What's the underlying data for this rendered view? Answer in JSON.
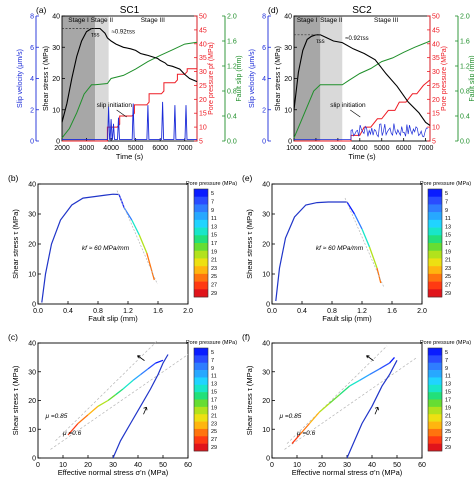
{
  "panels": {
    "a": {
      "letter": "(a)",
      "title": "SC1"
    },
    "d": {
      "letter": "(d)",
      "title": "SC2"
    },
    "b": {
      "letter": "(b)"
    },
    "c": {
      "letter": "(c)"
    },
    "e": {
      "letter": "(e)"
    },
    "f": {
      "letter": "(f)"
    }
  },
  "colorbar": {
    "title": "Pore pressure (MPa)",
    "labels": [
      "5",
      "7",
      "9",
      "11",
      "13",
      "15",
      "17",
      "19",
      "21",
      "23",
      "25",
      "27",
      "29"
    ],
    "colors": [
      "#0a1cff",
      "#2a4cff",
      "#2f7dff",
      "#27a8ff",
      "#20d4ff",
      "#18e6c8",
      "#22e07a",
      "#66dd33",
      "#b2e21c",
      "#ede012",
      "#ffb50f",
      "#ff740e",
      "#ff3a12",
      "#e0141b"
    ]
  },
  "colors": {
    "shear": "#000000",
    "slip_velocity": "#1b2bd8",
    "pore": "#ee1c25",
    "fault_slip": "#1f8f2a",
    "stage1": "#a7a7a7",
    "stage2": "#d9d9d9",
    "blue_line": "#2035c9",
    "dash": "#b5b5b5"
  },
  "chart_data": [
    {
      "type": "line",
      "panel": "a",
      "title": "SC1",
      "xlabel": "Time (s)",
      "xlim": [
        2000,
        7500
      ],
      "xticks": [
        "2000",
        "3000",
        "4000",
        "5000",
        "6000",
        "7000"
      ],
      "y_axes": [
        {
          "label": "Slip velocity (μm/s)",
          "lim": [
            0,
            8
          ],
          "ticks": [
            "0",
            "2",
            "4",
            "6",
            "8"
          ],
          "side": "left-outer"
        },
        {
          "label": "Shear stress τ (MPa)",
          "lim": [
            0,
            40
          ],
          "ticks": [
            "0",
            "10",
            "20",
            "30",
            "40"
          ],
          "side": "left-inner"
        },
        {
          "label": "Pore pressure pf (MPa)",
          "lim": [
            5,
            50
          ],
          "ticks": [
            "5",
            "10",
            "15",
            "20",
            "25",
            "30",
            "35",
            "40",
            "45",
            "50"
          ],
          "side": "right-inner"
        },
        {
          "label": "Fault slip (mm)",
          "lim": [
            0,
            2.0
          ],
          "ticks": [
            "0.0",
            "0.4",
            "0.8",
            "1.2",
            "1.6",
            "2.0"
          ],
          "side": "right-outer"
        }
      ],
      "stages": [
        {
          "label": "Stage I",
          "range": [
            2000,
            3350
          ]
        },
        {
          "label": "Stage II",
          "range": [
            3350,
            3900
          ]
        },
        {
          "label": "Stage III",
          "range": [
            3900,
            7500
          ]
        }
      ],
      "annotations": {
        "tau_ss": "τss",
        "ratio": "≈0.92τss",
        "slip_init": "slip initiation"
      },
      "series": [
        {
          "name": "Shear stress",
          "x": [
            2000,
            2200,
            2400,
            2600,
            2800,
            3000,
            3200,
            3350,
            3550,
            3750,
            3850,
            4000,
            4200,
            4500,
            4800,
            5000,
            5200,
            5400,
            5500,
            5900,
            6000,
            6200,
            6300,
            6500,
            6800,
            7000,
            7200,
            7500
          ],
          "y": [
            6,
            12,
            20,
            27,
            32,
            35,
            36,
            36,
            36,
            34.5,
            33,
            32,
            31,
            30,
            29.5,
            29,
            28,
            27.6,
            27.4,
            26.4,
            25.8,
            25,
            24.3,
            23.9,
            23,
            21.3,
            20,
            19
          ]
        },
        {
          "name": "Pore pressure",
          "x": [
            2000,
            3850,
            3850,
            4250,
            4350,
            4350,
            4850,
            4950,
            4950,
            5450,
            5550,
            5550,
            6050,
            6150,
            6150,
            6600,
            6700,
            6700,
            7000,
            7100,
            7100,
            7500
          ],
          "y": [
            5,
            5,
            10,
            10,
            11,
            14,
            14,
            15,
            18,
            18,
            19,
            22,
            22,
            23,
            26,
            26,
            27,
            29,
            29,
            30,
            31,
            31
          ]
        },
        {
          "name": "Fault slip",
          "x": [
            2000,
            2300,
            2600,
            2900,
            3200,
            3350,
            3850,
            4000,
            4500,
            5000,
            5500,
            6000,
            6500,
            7000,
            7500
          ],
          "y": [
            0.05,
            0.2,
            0.45,
            0.75,
            0.9,
            0.9,
            0.92,
            1.0,
            1.05,
            1.15,
            1.27,
            1.37,
            1.46,
            1.55,
            1.58
          ]
        },
        {
          "name": "Slip velocity",
          "spikes": [
            [
              3900,
              2.2
            ],
            [
              4000,
              1.4
            ],
            [
              4100,
              1.1
            ],
            [
              4300,
              1.5
            ],
            [
              4900,
              2.4
            ],
            [
              5500,
              2.3
            ],
            [
              6100,
              2.5
            ],
            [
              6600,
              2.3
            ],
            [
              7050,
              2.3
            ]
          ]
        }
      ]
    },
    {
      "type": "line",
      "panel": "d",
      "title": "SC2",
      "xlabel": "Time (s)",
      "xlim": [
        1000,
        7200
      ],
      "xticks": [
        "1000",
        "2000",
        "3000",
        "4000",
        "5000",
        "6000",
        "7000"
      ],
      "y_axes": [
        {
          "label": "Slip velocity (μm/s)",
          "lim": [
            0,
            8
          ],
          "ticks": [
            "0",
            "2",
            "4",
            "6",
            "8"
          ],
          "side": "left-outer"
        },
        {
          "label": "Shear stress τ (MPa)",
          "lim": [
            0,
            40
          ],
          "ticks": [
            "0",
            "10",
            "20",
            "30",
            "40"
          ],
          "side": "left-inner"
        },
        {
          "label": "Pore pressure (MPa)",
          "lim": [
            5,
            50
          ],
          "ticks": [
            "5",
            "10",
            "15",
            "20",
            "25",
            "30",
            "35",
            "40",
            "45",
            "50"
          ],
          "side": "right-inner"
        },
        {
          "label": "Fault slip (mm)",
          "lim": [
            0,
            2.0
          ],
          "ticks": [
            "0.0",
            "0.4",
            "0.8",
            "1.2",
            "1.6",
            "2.0"
          ],
          "side": "right-outer"
        }
      ],
      "stages": [
        {
          "label": "Stage I",
          "range": [
            1000,
            2200
          ]
        },
        {
          "label": "Stage II",
          "range": [
            2200,
            3200
          ]
        },
        {
          "label": "Stage III",
          "range": [
            3200,
            7200
          ]
        }
      ],
      "annotations": {
        "tau_ss": "τss",
        "ratio": "≈0.92τss",
        "slip_init": "slip initiation"
      },
      "series": [
        {
          "name": "Shear stress",
          "x": [
            1000,
            1200,
            1400,
            1600,
            1800,
            2000,
            2200,
            2500,
            2800,
            3200,
            3700,
            4200,
            4700,
            5200,
            5700,
            6200,
            6700,
            7000,
            7200
          ],
          "y": [
            10,
            22,
            29,
            32.5,
            33.5,
            34,
            34,
            33,
            32,
            31.5,
            29.5,
            28,
            26,
            21.5,
            17.5,
            12.5,
            9,
            6,
            5
          ]
        },
        {
          "name": "Pore pressure",
          "x": [
            1000,
            3600,
            3600,
            4000,
            4200,
            4500,
            4800,
            5000,
            5300,
            5600,
            5800,
            6100,
            6400,
            6600,
            6900,
            7200
          ],
          "y": [
            5,
            5,
            7,
            7,
            10,
            10,
            13,
            13,
            16,
            16,
            19,
            19,
            22,
            22,
            25,
            27
          ]
        },
        {
          "name": "Fault slip",
          "x": [
            1000,
            1300,
            1600,
            1900,
            2200,
            3200,
            3500,
            4000,
            4500,
            5000,
            5500,
            6000,
            6500,
            7000,
            7200
          ],
          "y": [
            0.05,
            0.3,
            0.55,
            0.8,
            0.9,
            0.9,
            0.97,
            1.08,
            1.16,
            1.27,
            1.33,
            1.42,
            1.5,
            1.57,
            1.6
          ]
        },
        {
          "name": "Slip velocity",
          "noise_from": 3600
        }
      ]
    },
    {
      "type": "line",
      "panel": "b",
      "xlabel": "Fault slip (mm)",
      "ylabel": "Shear stress τ (MPa)",
      "xlim": [
        0,
        2.0
      ],
      "ylim": [
        0,
        40
      ],
      "xticks": [
        "0.0",
        "0.4",
        "0.8",
        "1.2",
        "1.6",
        "2.0"
      ],
      "yticks": [
        "0",
        "10",
        "20",
        "30",
        "40"
      ],
      "annotation": "kf ≈ 60 MPa/mm",
      "series": [
        {
          "name": "loading",
          "x": [
            0.05,
            0.1,
            0.18,
            0.3,
            0.45,
            0.6,
            0.75,
            0.9,
            1.0,
            1.08
          ],
          "y": [
            0.5,
            10,
            20,
            28,
            33,
            35.3,
            35.8,
            36.3,
            36.6,
            36.5
          ]
        },
        {
          "name": "reactivation",
          "x": [
            1.08,
            1.15,
            1.25,
            1.35,
            1.45,
            1.55
          ],
          "y": [
            36.5,
            32,
            28,
            23,
            17,
            8
          ]
        }
      ]
    },
    {
      "type": "line",
      "panel": "e",
      "xlabel": "Fault slip (mm)",
      "ylabel": "Shear stress τ (MPa)",
      "xlim": [
        0,
        2.0
      ],
      "ylim": [
        0,
        40
      ],
      "xticks": [
        "0.0",
        "0.4",
        "0.8",
        "1.2",
        "1.6",
        "2.0"
      ],
      "yticks": [
        "0",
        "10",
        "20",
        "30",
        "40"
      ],
      "annotation": "kf ≈ 60 MPa/mm",
      "series": [
        {
          "name": "loading",
          "x": [
            0.05,
            0.1,
            0.18,
            0.3,
            0.45,
            0.6,
            0.75,
            0.9,
            1.0
          ],
          "y": [
            1,
            12,
            22,
            29,
            33,
            33.8,
            34,
            34,
            34
          ]
        },
        {
          "name": "reactivation",
          "x": [
            1.0,
            1.1,
            1.2,
            1.3,
            1.4,
            1.45
          ],
          "y": [
            34,
            30,
            25,
            19,
            12,
            7
          ]
        }
      ]
    },
    {
      "type": "line",
      "panel": "c",
      "xlabel": "Effective normal stress σ'n (MPa)",
      "ylabel": "Shear stress τ (MPa)",
      "xlim": [
        0,
        60
      ],
      "ylim": [
        0,
        40
      ],
      "xticks": [
        "0",
        "10",
        "20",
        "30",
        "40",
        "50",
        "60"
      ],
      "yticks": [
        "0",
        "10",
        "20",
        "30",
        "40"
      ],
      "labels": {
        "mu_high": "μ =0.85",
        "mu_low": "μ =0.6"
      },
      "series": [
        {
          "name": "loading",
          "x": [
            30,
            33,
            37,
            41,
            45,
            48,
            50,
            52
          ],
          "y": [
            0,
            6,
            12,
            18,
            24,
            29,
            33,
            36
          ]
        },
        {
          "name": "reactivation",
          "x": [
            12,
            16,
            20,
            24,
            28,
            31,
            34,
            38,
            41,
            44,
            47,
            50
          ],
          "y": [
            8,
            12,
            15,
            18,
            20,
            22,
            24,
            27,
            29,
            31,
            33,
            34
          ]
        },
        {
          "name": "μ =0.85",
          "x": [
            7,
            48
          ],
          "y": [
            6,
            41
          ]
        },
        {
          "name": "μ =0.6",
          "x": [
            5,
            60
          ],
          "y": [
            3,
            36
          ]
        }
      ]
    },
    {
      "type": "line",
      "panel": "f",
      "xlabel": "Effective normal stress σ'n (MPa)",
      "ylabel": "Shear stress τ (MPa)",
      "xlim": [
        0,
        60
      ],
      "ylim": [
        0,
        40
      ],
      "xticks": [
        "0",
        "10",
        "20",
        "30",
        "40",
        "50",
        "60"
      ],
      "yticks": [
        "0",
        "10",
        "20",
        "30",
        "40"
      ],
      "labels": {
        "mu_high": "μ =0.85",
        "mu_low": "μ =0.6"
      },
      "series": [
        {
          "name": "loading",
          "x": [
            30,
            33,
            36,
            40,
            44,
            47,
            50
          ],
          "y": [
            0,
            6,
            12,
            18,
            25,
            29,
            34
          ]
        },
        {
          "name": "reactivation",
          "x": [
            8,
            11,
            15,
            19,
            23,
            27,
            31,
            35,
            39,
            43,
            47,
            49
          ],
          "y": [
            5,
            8,
            12,
            16,
            19,
            22,
            25,
            27,
            29,
            31,
            33,
            35
          ]
        },
        {
          "name": "μ =0.85",
          "x": [
            6,
            46
          ],
          "y": [
            5,
            39
          ]
        },
        {
          "name": "μ =0.6",
          "x": [
            5,
            58
          ],
          "y": [
            3,
            35
          ]
        }
      ]
    }
  ]
}
